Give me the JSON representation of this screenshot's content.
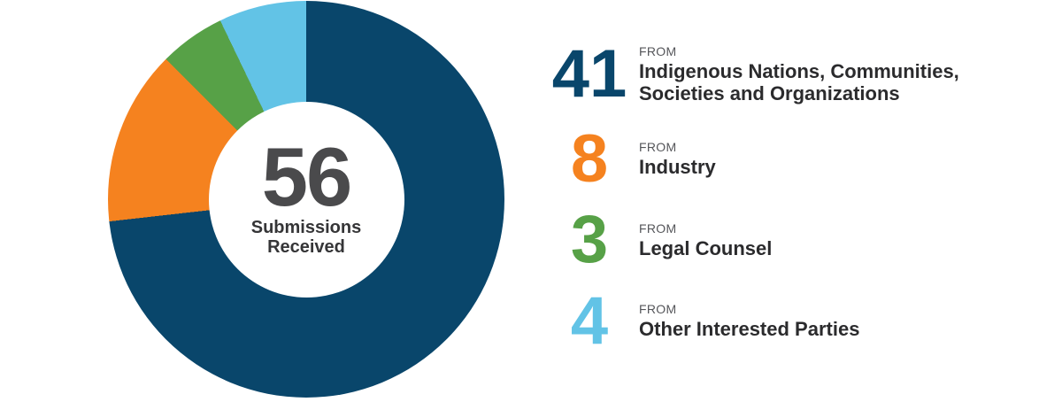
{
  "chart_data": {
    "type": "pie",
    "subtype": "donut",
    "total": 56,
    "center_text": "56 Submissions Received",
    "direction": "clockwise",
    "start_angle_deg": 0,
    "legend_position": "right",
    "series": [
      {
        "label": "Indigenous Nations, Communities, Societies and Organizations",
        "value": 41,
        "color": "#09466B"
      },
      {
        "label": "Industry",
        "value": 8,
        "color": "#F5821F"
      },
      {
        "label": "Legal Counsel",
        "value": 3,
        "color": "#57A147"
      },
      {
        "label": "Other Interested Parties",
        "value": 4,
        "color": "#62C3E6"
      }
    ]
  },
  "center": {
    "value": "56",
    "label_line1": "Submissions",
    "label_line2": "Received"
  },
  "legend": {
    "from_label": "FROM"
  }
}
